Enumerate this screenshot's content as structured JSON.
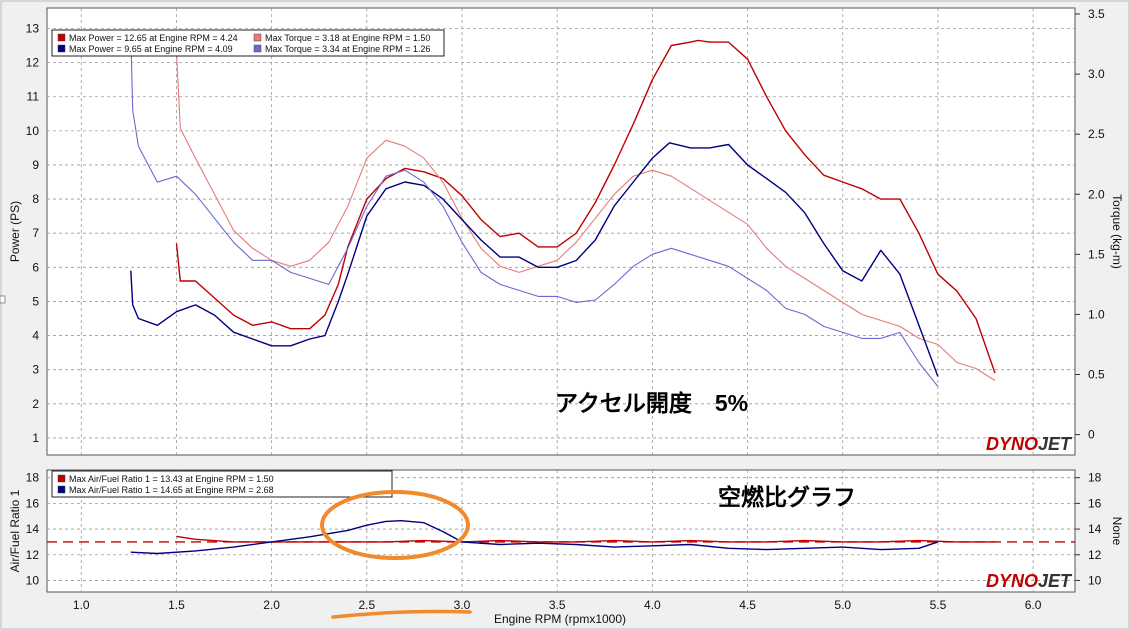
{
  "colors": {
    "power_run1": "#c00000",
    "torque_run1": "#e87a7a",
    "power_run2": "#000080",
    "torque_run2": "#6a6ad0",
    "afr_run1": "#c00000",
    "afr_run2": "#000080",
    "target_line": "#c00000",
    "highlight": "#f08a2c",
    "brand_red": "#c00000",
    "brand_dark": "#333333",
    "grid": "#9a9a9a",
    "plot_bg": "#ffffff",
    "frame_bg": "#f0f0f0"
  },
  "chart_data": [
    {
      "type": "line",
      "title": "",
      "xlabel": "Engine RPM (rpmx1000)",
      "ylabel": "Power (PS)",
      "y2label": "Torque (kg-m)",
      "xlim": [
        0.82,
        6.22
      ],
      "ylim": [
        0.5,
        13.6
      ],
      "y2lim": [
        -0.17,
        3.55
      ],
      "xticks": [
        "1.0",
        "1.5",
        "2.0",
        "2.5",
        "3.0",
        "3.5",
        "4.0",
        "4.5",
        "5.0",
        "5.5",
        "6.0"
      ],
      "yticks": [
        "1",
        "2",
        "3",
        "4",
        "5",
        "6",
        "7",
        "8",
        "9",
        "10",
        "11",
        "12",
        "13"
      ],
      "y2ticks": [
        "0",
        "0.5",
        "1.0",
        "1.5",
        "2.0",
        "2.5",
        "3.0",
        "3.5"
      ],
      "grid": true,
      "annotation": "アクセル開度　5%",
      "watermark": [
        "DYNO",
        "JET"
      ],
      "legend": [
        {
          "label": "Max Power = 12.65 at Engine RPM = 4.24",
          "series": "power_run1"
        },
        {
          "label": "Max Torque = 3.18 at Engine RPM = 1.50",
          "series": "torque_run1"
        },
        {
          "label": "Max Power = 9.65 at Engine RPM = 4.09",
          "series": "power_run2"
        },
        {
          "label": "Max Torque = 3.34 at Engine RPM = 1.26",
          "series": "torque_run2"
        }
      ],
      "series": [
        {
          "name": "power_run1",
          "axis": "left",
          "x": [
            1.5,
            1.52,
            1.6,
            1.7,
            1.8,
            1.9,
            2.0,
            2.1,
            2.2,
            2.28,
            2.35,
            2.4,
            2.5,
            2.6,
            2.7,
            2.8,
            2.9,
            3.0,
            3.1,
            3.2,
            3.3,
            3.4,
            3.5,
            3.6,
            3.7,
            3.8,
            3.9,
            4.0,
            4.1,
            4.2,
            4.24,
            4.3,
            4.4,
            4.5,
            4.6,
            4.7,
            4.8,
            4.9,
            5.0,
            5.1,
            5.2,
            5.3,
            5.4,
            5.5,
            5.6,
            5.7,
            5.8
          ],
          "y": [
            6.7,
            5.6,
            5.6,
            5.1,
            4.6,
            4.3,
            4.4,
            4.2,
            4.2,
            4.6,
            5.5,
            6.6,
            8.0,
            8.6,
            8.9,
            8.8,
            8.6,
            8.1,
            7.4,
            6.9,
            7.0,
            6.6,
            6.6,
            7.0,
            7.9,
            9.0,
            10.2,
            11.5,
            12.5,
            12.6,
            12.65,
            12.6,
            12.6,
            12.1,
            11.0,
            10.0,
            9.3,
            8.7,
            8.5,
            8.3,
            8.0,
            8.0,
            7.0,
            5.8,
            5.3,
            4.5,
            2.9
          ]
        },
        {
          "name": "torque_run1",
          "axis": "right",
          "x": [
            1.5,
            1.52,
            1.6,
            1.7,
            1.8,
            1.9,
            2.0,
            2.1,
            2.2,
            2.3,
            2.4,
            2.5,
            2.6,
            2.7,
            2.8,
            2.9,
            3.0,
            3.1,
            3.2,
            3.3,
            3.4,
            3.5,
            3.6,
            3.7,
            3.8,
            3.9,
            4.0,
            4.1,
            4.2,
            4.3,
            4.4,
            4.5,
            4.6,
            4.7,
            4.8,
            4.9,
            5.0,
            5.1,
            5.2,
            5.3,
            5.4,
            5.5,
            5.6,
            5.7,
            5.8
          ],
          "y": [
            3.18,
            2.55,
            2.3,
            2.0,
            1.7,
            1.55,
            1.45,
            1.4,
            1.45,
            1.6,
            1.9,
            2.3,
            2.45,
            2.4,
            2.3,
            2.1,
            1.8,
            1.55,
            1.4,
            1.35,
            1.4,
            1.45,
            1.6,
            1.8,
            2.0,
            2.15,
            2.2,
            2.15,
            2.05,
            1.95,
            1.85,
            1.75,
            1.55,
            1.4,
            1.3,
            1.2,
            1.1,
            1.0,
            0.95,
            0.9,
            0.8,
            0.75,
            0.6,
            0.55,
            0.45
          ]
        },
        {
          "name": "power_run2",
          "axis": "left",
          "x": [
            1.26,
            1.27,
            1.3,
            1.4,
            1.5,
            1.6,
            1.7,
            1.8,
            1.9,
            2.0,
            2.1,
            2.2,
            2.28,
            2.35,
            2.4,
            2.5,
            2.6,
            2.7,
            2.8,
            2.9,
            3.0,
            3.1,
            3.2,
            3.3,
            3.4,
            3.5,
            3.6,
            3.7,
            3.8,
            3.9,
            4.0,
            4.09,
            4.2,
            4.3,
            4.4,
            4.5,
            4.6,
            4.7,
            4.8,
            4.9,
            5.0,
            5.1,
            5.2,
            5.3,
            5.4,
            5.5
          ],
          "y": [
            5.9,
            4.9,
            4.5,
            4.3,
            4.7,
            4.9,
            4.6,
            4.1,
            3.9,
            3.7,
            3.7,
            3.9,
            4.0,
            5.0,
            5.8,
            7.5,
            8.3,
            8.5,
            8.4,
            8.0,
            7.4,
            6.8,
            6.3,
            6.3,
            6.0,
            6.0,
            6.2,
            6.8,
            7.8,
            8.5,
            9.2,
            9.65,
            9.5,
            9.5,
            9.6,
            9.0,
            8.6,
            8.2,
            7.6,
            6.7,
            5.9,
            5.6,
            6.5,
            5.8,
            4.3,
            2.8
          ]
        },
        {
          "name": "torque_run2",
          "axis": "right",
          "x": [
            1.26,
            1.27,
            1.3,
            1.4,
            1.5,
            1.6,
            1.7,
            1.8,
            1.9,
            2.0,
            2.1,
            2.2,
            2.3,
            2.4,
            2.5,
            2.6,
            2.7,
            2.8,
            2.9,
            3.0,
            3.1,
            3.2,
            3.3,
            3.4,
            3.5,
            3.6,
            3.7,
            3.8,
            3.9,
            4.0,
            4.1,
            4.2,
            4.3,
            4.4,
            4.5,
            4.6,
            4.7,
            4.8,
            4.9,
            5.0,
            5.1,
            5.2,
            5.3,
            5.4,
            5.5
          ],
          "y": [
            3.34,
            2.7,
            2.4,
            2.1,
            2.15,
            2.0,
            1.8,
            1.6,
            1.45,
            1.45,
            1.35,
            1.3,
            1.25,
            1.55,
            1.9,
            2.15,
            2.2,
            2.1,
            1.9,
            1.6,
            1.35,
            1.25,
            1.2,
            1.15,
            1.15,
            1.1,
            1.12,
            1.25,
            1.4,
            1.5,
            1.55,
            1.5,
            1.45,
            1.4,
            1.3,
            1.2,
            1.05,
            1.0,
            0.9,
            0.85,
            0.8,
            0.8,
            0.85,
            0.6,
            0.4
          ]
        }
      ]
    },
    {
      "type": "line",
      "title": "",
      "xlabel": "Engine RPM (rpmx1000)",
      "ylabel": "Air/Fuel Ratio 1",
      "y2label": "None",
      "xlim": [
        0.82,
        6.22
      ],
      "ylim": [
        9.1,
        18.6
      ],
      "xticks": [
        "1.0",
        "1.5",
        "2.0",
        "2.5",
        "3.0",
        "3.5",
        "4.0",
        "4.5",
        "5.0",
        "5.5",
        "6.0"
      ],
      "yticks": [
        "10",
        "12",
        "14",
        "16",
        "18"
      ],
      "y2ticks": [
        "10",
        "12",
        "14",
        "16",
        "18"
      ],
      "grid": true,
      "annotation": "空燃比グラフ",
      "watermark": [
        "DYNO",
        "JET"
      ],
      "reference_line": 13.0,
      "legend": [
        {
          "label": "Max Air/Fuel Ratio 1 = 13.43 at Engine RPM = 1.50",
          "series": "afr_run1"
        },
        {
          "label": "Max Air/Fuel Ratio 1 = 14.65 at Engine RPM = 2.68",
          "series": "afr_run2"
        }
      ],
      "series": [
        {
          "name": "afr_run1",
          "x": [
            1.5,
            1.6,
            1.8,
            2.0,
            2.2,
            2.4,
            2.6,
            2.8,
            3.0,
            3.2,
            3.4,
            3.6,
            3.8,
            4.0,
            4.2,
            4.4,
            4.6,
            4.8,
            5.0,
            5.2,
            5.4,
            5.6,
            5.8
          ],
          "y": [
            13.43,
            13.2,
            13.0,
            13.0,
            13.0,
            13.0,
            13.0,
            13.1,
            13.0,
            13.1,
            13.0,
            13.0,
            13.1,
            13.0,
            13.1,
            13.0,
            13.0,
            13.1,
            13.0,
            13.0,
            13.1,
            13.0,
            13.0
          ]
        },
        {
          "name": "afr_run2",
          "x": [
            1.26,
            1.4,
            1.6,
            1.8,
            2.0,
            2.2,
            2.4,
            2.5,
            2.6,
            2.68,
            2.8,
            2.9,
            3.0,
            3.2,
            3.4,
            3.6,
            3.8,
            4.0,
            4.2,
            4.4,
            4.6,
            4.8,
            5.0,
            5.2,
            5.4,
            5.5
          ],
          "y": [
            12.2,
            12.1,
            12.3,
            12.6,
            13.0,
            13.4,
            13.9,
            14.3,
            14.6,
            14.65,
            14.5,
            13.8,
            13.0,
            12.8,
            12.9,
            12.8,
            12.6,
            12.7,
            12.8,
            12.5,
            12.4,
            12.5,
            12.6,
            12.4,
            12.5,
            13.0
          ]
        }
      ]
    }
  ]
}
